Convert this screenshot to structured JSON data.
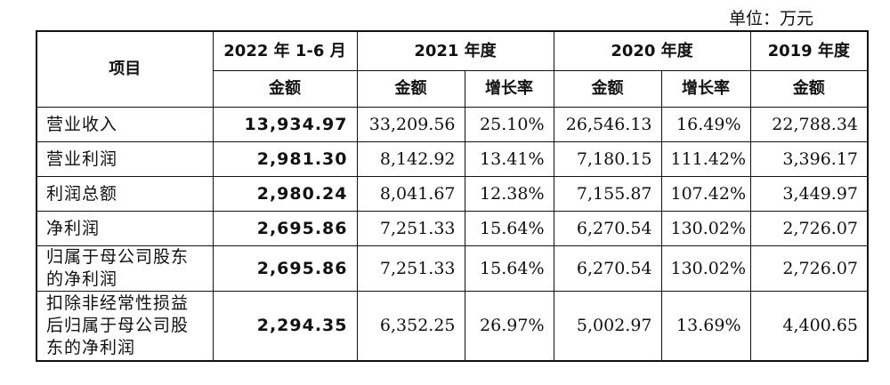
{
  "unit_label": "单位：万元",
  "header": {
    "item": "项目",
    "periods": [
      "2022 年 1-6 月",
      "2021 年度",
      "2020 年度",
      "2019 年度"
    ],
    "sub": {
      "amount": "金额",
      "growth": "增长率"
    }
  },
  "rows": [
    {
      "label": "营业收入",
      "h2022": "13,934.97",
      "y2021": "33,209.56",
      "g2021": "25.10%",
      "y2020": "26,546.13",
      "g2020": "16.49%",
      "y2019": "22,788.34"
    },
    {
      "label": "营业利润",
      "h2022": "2,981.30",
      "y2021": "8,142.92",
      "g2021": "13.41%",
      "y2020": "7,180.15",
      "g2020": "111.42%",
      "y2019": "3,396.17"
    },
    {
      "label": "利润总额",
      "h2022": "2,980.24",
      "y2021": "8,041.67",
      "g2021": "12.38%",
      "y2020": "7,155.87",
      "g2020": "107.42%",
      "y2019": "3,449.97"
    },
    {
      "label": "净利润",
      "h2022": "2,695.86",
      "y2021": "7,251.33",
      "g2021": "15.64%",
      "y2020": "6,270.54",
      "g2020": "130.02%",
      "y2019": "2,726.07"
    },
    {
      "label": "归属于母公司股东的净利润",
      "h2022": "2,695.86",
      "y2021": "7,251.33",
      "g2021": "15.64%",
      "y2020": "6,270.54",
      "g2020": "130.02%",
      "y2019": "2,726.07"
    },
    {
      "label": "扣除非经常性损益后归属于母公司股东的净利润",
      "h2022": "2,294.35",
      "y2021": "6,352.25",
      "g2021": "26.97%",
      "y2020": "5,002.97",
      "g2020": "13.69%",
      "y2019": "4,400.65"
    }
  ]
}
